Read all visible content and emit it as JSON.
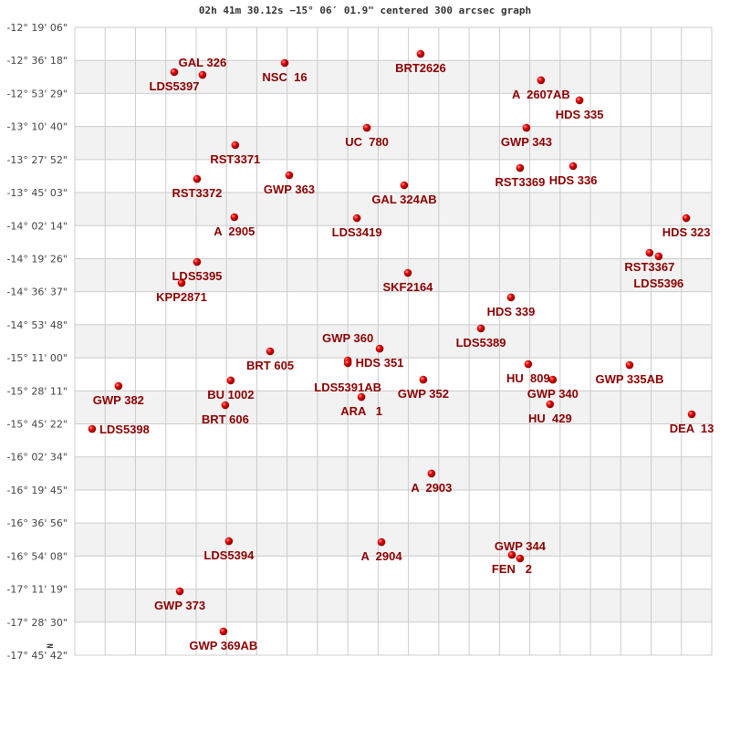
{
  "title": "02h 41m 30.12s −15° 06′ 01.9\" centered 300 arcsec graph",
  "north_marker": "N",
  "colors": {
    "star": "#e00000",
    "label": "#8b0000",
    "grid": "#cccccc",
    "band": "#f2f2f2"
  },
  "chart_data": {
    "type": "scatter",
    "title": "02h 41m 30.12s −15° 06′ 01.9\" centered 300 arcsec graph",
    "grid": true,
    "x_grid_divisions": 21,
    "ylim": [
      -17.7617,
      -12.3183
    ],
    "y_tick_labels": [
      "-12° 19' 06\"",
      "-12° 36' 18\"",
      "-12° 53' 29\"",
      "-13° 10' 40\"",
      "-13° 27' 52\"",
      "-13° 45' 03\"",
      "-14° 02' 14\"",
      "-14° 19' 26\"",
      "-14° 36' 37\"",
      "-14° 53' 48\"",
      "-15° 11' 00\"",
      "-15° 28' 11\"",
      "-15° 45' 22\"",
      "-16° 02' 34\"",
      "-16° 19' 45\"",
      "-16° 36' 56\"",
      "-16° 54' 08\"",
      "-17° 11' 19\"",
      "-17° 28' 30\"",
      "-17° 45' 42\""
    ],
    "points": [
      {
        "label": "LDS5397",
        "x": 3.28,
        "y": -12.706
      },
      {
        "label": "GAL 326",
        "x": 4.21,
        "y": -12.73
      },
      {
        "label": "NSC  16",
        "x": 6.92,
        "y": -12.627
      },
      {
        "label": "BRT2626",
        "x": 11.4,
        "y": -12.548
      },
      {
        "label": "A  2607AB",
        "x": 15.37,
        "y": -12.777
      },
      {
        "label": "HDS 335",
        "x": 16.64,
        "y": -12.951
      },
      {
        "label": "UC  780",
        "x": 9.63,
        "y": -13.189
      },
      {
        "label": "GWP 343",
        "x": 14.89,
        "y": -13.189
      },
      {
        "label": "RST3371",
        "x": 5.29,
        "y": -13.339
      },
      {
        "label": "RST3369",
        "x": 14.68,
        "y": -13.537
      },
      {
        "label": "HDS 336",
        "x": 16.43,
        "y": -13.521
      },
      {
        "label": "GWP 363",
        "x": 7.07,
        "y": -13.6
      },
      {
        "label": "RST3372",
        "x": 4.03,
        "y": -13.632
      },
      {
        "label": "GAL 324AB",
        "x": 10.86,
        "y": -13.687
      },
      {
        "label": "A  2905",
        "x": 5.26,
        "y": -13.964
      },
      {
        "label": "LDS3419",
        "x": 9.3,
        "y": -13.972
      },
      {
        "label": "HDS 323",
        "x": 20.16,
        "y": -13.972
      },
      {
        "label": "RST3367",
        "x": 18.95,
        "y": -14.273
      },
      {
        "label": "LDS5396",
        "x": 19.25,
        "y": -14.304
      },
      {
        "label": "LDS5395",
        "x": 4.03,
        "y": -14.352
      },
      {
        "label": "SKF2164",
        "x": 10.98,
        "y": -14.447
      },
      {
        "label": "KPP2871",
        "x": 3.52,
        "y": -14.534
      },
      {
        "label": "HDS 339",
        "x": 14.38,
        "y": -14.66
      },
      {
        "label": "LDS5389",
        "x": 13.39,
        "y": -14.929
      },
      {
        "label": "BRT 605",
        "x": 6.44,
        "y": -15.127
      },
      {
        "label": "HDS 351",
        "x": 10.05,
        "y": -15.104
      },
      {
        "label": "LDS5391AB",
        "x": 9.0,
        "y": -15.207
      },
      {
        "label": "GWP 360",
        "x": 9.0,
        "y": -15.23
      },
      {
        "label": "HU  809",
        "x": 14.95,
        "y": -15.238
      },
      {
        "label": "GWP 335AB",
        "x": 18.29,
        "y": -15.246
      },
      {
        "label": "GWP 382",
        "x": 1.44,
        "y": -15.428
      },
      {
        "label": "BU 1002",
        "x": 5.14,
        "y": -15.38
      },
      {
        "label": "GWP 352",
        "x": 11.49,
        "y": -15.373
      },
      {
        "label": "GWP 340",
        "x": 15.76,
        "y": -15.373
      },
      {
        "label": "ARA   1",
        "x": 9.45,
        "y": -15.523
      },
      {
        "label": "BRT 606",
        "x": 4.96,
        "y": -15.594
      },
      {
        "label": "HU  429",
        "x": 15.67,
        "y": -15.586
      },
      {
        "label": "DEA  13",
        "x": 20.34,
        "y": -15.673
      },
      {
        "label": "LDS5398",
        "x": 0.57,
        "y": -15.8
      },
      {
        "label": "A  2903",
        "x": 11.76,
        "y": -16.187
      },
      {
        "label": "LDS5394",
        "x": 5.08,
        "y": -16.773
      },
      {
        "label": "A  2904",
        "x": 10.11,
        "y": -16.781
      },
      {
        "label": "FEN   2",
        "x": 14.41,
        "y": -16.892
      },
      {
        "label": "GWP 344",
        "x": 14.68,
        "y": -16.923
      },
      {
        "label": "GWP 373",
        "x": 3.46,
        "y": -17.208
      },
      {
        "label": "GWP 369AB",
        "x": 4.9,
        "y": -17.556
      }
    ]
  }
}
